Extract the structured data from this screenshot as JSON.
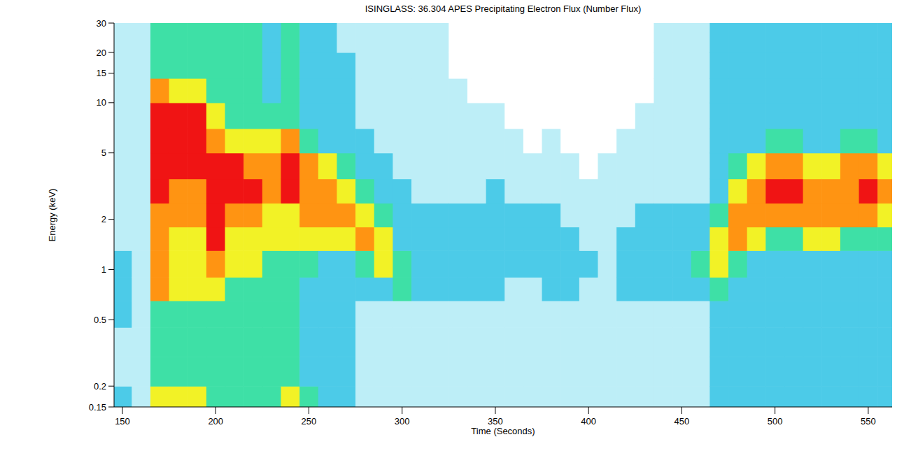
{
  "chart_data": {
    "type": "heatmap",
    "title": "ISINGLASS: 36.304  APES Precipitating Electron Flux (Number Flux)",
    "x_label": "Time (Seconds)",
    "y_label": "Energy (keV)",
    "log": "y",
    "xlim": [
      145.5,
      562.8
    ],
    "ylim": [
      0.15,
      30
    ],
    "xticks": [
      150,
      200,
      250,
      300,
      350,
      400,
      450,
      500,
      550
    ],
    "yticks": [
      0.15,
      0.2,
      0.5,
      1,
      2,
      5,
      10,
      15,
      20,
      30
    ],
    "zlim": [
      0,
      6
    ],
    "x_bins": [
      145,
      155,
      165,
      175,
      185,
      195,
      205,
      215,
      225,
      235,
      245,
      255,
      265,
      275,
      285,
      295,
      305,
      315,
      325,
      335,
      345,
      355,
      365,
      375,
      385,
      395,
      405,
      415,
      425,
      435,
      445,
      455,
      465,
      475,
      485,
      495,
      505,
      515,
      525,
      535,
      545,
      555,
      565
    ],
    "y_bins": [
      0.15,
      0.2,
      0.3,
      0.45,
      0.65,
      0.9,
      1.3,
      1.8,
      2.5,
      3.5,
      5,
      7,
      10,
      14,
      20,
      30
    ],
    "cells": [
      [
        2,
        1,
        1,
        2,
        2,
        2,
        1,
        1,
        1,
        1,
        1,
        1,
        1,
        1,
        1
      ],
      [
        1,
        1,
        1,
        1,
        1,
        1,
        1,
        1,
        1,
        1,
        1,
        1,
        1,
        1,
        1
      ],
      [
        4,
        3,
        3,
        3,
        5,
        5,
        5,
        5,
        6,
        6,
        6,
        6,
        5,
        3,
        3
      ],
      [
        4,
        3,
        3,
        3,
        4,
        4,
        4,
        5,
        5,
        6,
        6,
        6,
        4,
        3,
        3
      ],
      [
        4,
        3,
        3,
        3,
        4,
        4,
        4,
        5,
        5,
        6,
        6,
        6,
        4,
        3,
        3
      ],
      [
        3,
        3,
        3,
        3,
        4,
        5,
        6,
        6,
        6,
        6,
        5,
        4,
        3,
        3,
        3
      ],
      [
        3,
        3,
        3,
        3,
        3,
        4,
        4,
        5,
        6,
        6,
        4,
        3,
        3,
        3,
        3
      ],
      [
        3,
        3,
        3,
        3,
        3,
        4,
        4,
        5,
        6,
        5,
        4,
        3,
        3,
        3,
        3
      ],
      [
        3,
        3,
        3,
        3,
        3,
        3,
        4,
        4,
        5,
        5,
        4,
        3,
        2,
        2,
        2
      ],
      [
        4,
        3,
        3,
        3,
        3,
        3,
        4,
        4,
        6,
        6,
        5,
        3,
        3,
        3,
        3
      ],
      [
        3,
        2,
        2,
        2,
        2,
        3,
        4,
        5,
        5,
        5,
        3,
        2,
        2,
        2,
        2
      ],
      [
        2,
        2,
        2,
        2,
        2,
        2,
        4,
        5,
        5,
        4,
        2,
        2,
        2,
        2,
        2
      ],
      [
        2,
        2,
        2,
        2,
        2,
        2,
        4,
        5,
        4,
        3,
        2,
        2,
        2,
        2,
        1
      ],
      [
        1,
        1,
        1,
        1,
        2,
        3,
        5,
        4,
        3,
        2,
        2,
        1,
        1,
        1,
        1
      ],
      [
        1,
        1,
        1,
        1,
        2,
        4,
        4,
        3,
        2,
        2,
        1,
        1,
        1,
        1,
        1
      ],
      [
        1,
        1,
        1,
        1,
        3,
        3,
        2,
        2,
        2,
        1,
        1,
        1,
        1,
        1,
        1
      ],
      [
        1,
        1,
        1,
        1,
        2,
        2,
        2,
        2,
        1,
        1,
        1,
        1,
        1,
        1,
        1
      ],
      [
        1,
        1,
        1,
        1,
        2,
        2,
        2,
        2,
        1,
        1,
        1,
        1,
        1,
        1,
        1
      ],
      [
        1,
        1,
        1,
        1,
        2,
        2,
        2,
        2,
        1,
        1,
        1,
        1,
        1,
        0,
        0
      ],
      [
        1,
        1,
        1,
        1,
        2,
        2,
        2,
        2,
        1,
        1,
        1,
        1,
        0,
        0,
        0
      ],
      [
        1,
        1,
        1,
        1,
        2,
        2,
        2,
        2,
        2,
        1,
        1,
        1,
        0,
        0,
        0
      ],
      [
        1,
        1,
        1,
        1,
        1,
        2,
        2,
        2,
        1,
        1,
        1,
        0,
        0,
        0,
        0
      ],
      [
        1,
        1,
        1,
        1,
        1,
        2,
        2,
        2,
        1,
        1,
        0,
        0,
        0,
        0,
        0
      ],
      [
        1,
        1,
        1,
        1,
        2,
        2,
        2,
        2,
        1,
        1,
        1,
        0,
        0,
        0,
        0
      ],
      [
        1,
        1,
        1,
        1,
        2,
        2,
        2,
        1,
        1,
        1,
        0,
        0,
        0,
        0,
        0
      ],
      [
        1,
        1,
        1,
        1,
        1,
        2,
        1,
        1,
        1,
        0,
        0,
        0,
        0,
        0,
        0
      ],
      [
        1,
        1,
        1,
        1,
        1,
        1,
        1,
        1,
        1,
        1,
        0,
        0,
        0,
        0,
        0
      ],
      [
        1,
        1,
        1,
        1,
        2,
        2,
        2,
        1,
        1,
        1,
        1,
        0,
        0,
        0,
        0
      ],
      [
        1,
        1,
        1,
        1,
        2,
        2,
        2,
        2,
        1,
        1,
        1,
        1,
        0,
        0,
        0
      ],
      [
        1,
        1,
        1,
        1,
        2,
        2,
        2,
        2,
        1,
        1,
        1,
        1,
        1,
        1,
        1
      ],
      [
        1,
        1,
        1,
        1,
        2,
        2,
        2,
        2,
        1,
        1,
        1,
        1,
        1,
        1,
        1
      ],
      [
        1,
        1,
        1,
        1,
        2,
        3,
        2,
        2,
        1,
        1,
        1,
        1,
        1,
        1,
        1
      ],
      [
        2,
        2,
        2,
        2,
        3,
        4,
        4,
        3,
        2,
        2,
        2,
        2,
        2,
        2,
        2
      ],
      [
        2,
        2,
        2,
        2,
        2,
        3,
        5,
        5,
        4,
        3,
        2,
        2,
        2,
        2,
        2
      ],
      [
        2,
        2,
        2,
        2,
        2,
        2,
        4,
        5,
        5,
        4,
        2,
        2,
        2,
        2,
        2
      ],
      [
        2,
        2,
        2,
        2,
        2,
        2,
        3,
        5,
        6,
        5,
        3,
        2,
        2,
        2,
        2
      ],
      [
        2,
        2,
        2,
        2,
        2,
        2,
        3,
        5,
        6,
        5,
        3,
        2,
        2,
        2,
        2
      ],
      [
        2,
        2,
        2,
        2,
        2,
        2,
        4,
        5,
        5,
        4,
        2,
        2,
        2,
        2,
        2
      ],
      [
        2,
        2,
        2,
        2,
        2,
        2,
        4,
        5,
        5,
        4,
        2,
        2,
        2,
        2,
        2
      ],
      [
        2,
        2,
        2,
        2,
        2,
        2,
        3,
        5,
        5,
        5,
        3,
        2,
        2,
        2,
        2
      ],
      [
        2,
        2,
        2,
        2,
        2,
        2,
        3,
        5,
        6,
        5,
        3,
        2,
        2,
        2,
        2
      ],
      [
        2,
        2,
        2,
        2,
        2,
        2,
        3,
        4,
        5,
        4,
        2,
        2,
        2,
        2,
        2
      ]
    ]
  }
}
